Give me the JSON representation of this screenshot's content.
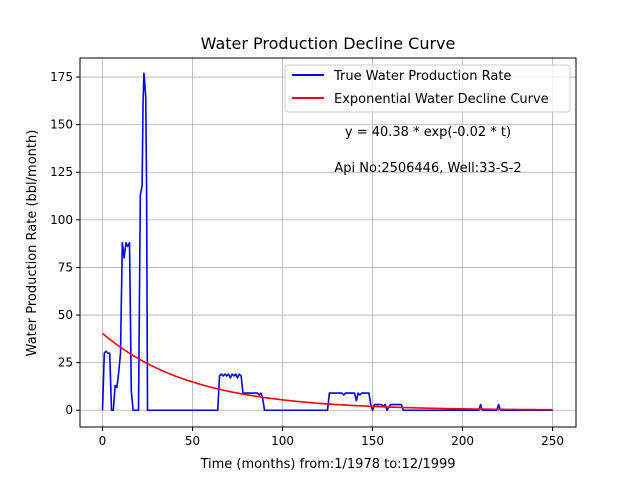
{
  "chart_data": {
    "type": "line",
    "title": "Water Production Decline Curve",
    "xlabel": "Time (months) from:1/1978 to:12/1999",
    "ylabel": "Water Production Rate (bbl/month)",
    "xlim": [
      -12.5,
      263
    ],
    "ylim": [
      -8.8,
      185
    ],
    "xticks": [
      0,
      50,
      100,
      150,
      200,
      250
    ],
    "yticks": [
      0,
      25,
      50,
      75,
      100,
      125,
      150,
      175
    ],
    "grid": true,
    "legend_position": "top-right",
    "annotations": [
      "y = 40.38 * exp(-0.02 * t)",
      "Api No:2506446, Well:33-S-2"
    ],
    "series": [
      {
        "name": "True Water Production Rate",
        "color": "#0000ff",
        "kind": "polyline",
        "points": [
          [
            0,
            0
          ],
          [
            1,
            30
          ],
          [
            2,
            31
          ],
          [
            3,
            30
          ],
          [
            4,
            30
          ],
          [
            5,
            0
          ],
          [
            6,
            0
          ],
          [
            7,
            13
          ],
          [
            8,
            12
          ],
          [
            9,
            20
          ],
          [
            10,
            30
          ],
          [
            11,
            88
          ],
          [
            12,
            80
          ],
          [
            13,
            88
          ],
          [
            14,
            86
          ],
          [
            15,
            88
          ],
          [
            16,
            10
          ],
          [
            17,
            0
          ],
          [
            18,
            0
          ],
          [
            19,
            0
          ],
          [
            20,
            0
          ],
          [
            21,
            113
          ],
          [
            22,
            118
          ],
          [
            22.5,
            160
          ],
          [
            23,
            177
          ],
          [
            24,
            165
          ],
          [
            24.5,
            115
          ],
          [
            25,
            0
          ],
          [
            26,
            0
          ],
          [
            64,
            0
          ],
          [
            65,
            18
          ],
          [
            66,
            19
          ],
          [
            67,
            18
          ],
          [
            68,
            19
          ],
          [
            69,
            18
          ],
          [
            70,
            19
          ],
          [
            71,
            17
          ],
          [
            72,
            19
          ],
          [
            73,
            18
          ],
          [
            74,
            19
          ],
          [
            75,
            17
          ],
          [
            76,
            19
          ],
          [
            77,
            18
          ],
          [
            78,
            9
          ],
          [
            86,
            9
          ],
          [
            87,
            8
          ],
          [
            88,
            9
          ],
          [
            89,
            6
          ],
          [
            90,
            0
          ],
          [
            125,
            0
          ],
          [
            126,
            9
          ],
          [
            133,
            9
          ],
          [
            134,
            8
          ],
          [
            135,
            9
          ],
          [
            140,
            9
          ],
          [
            141,
            5
          ],
          [
            142,
            9
          ],
          [
            143,
            8
          ],
          [
            144,
            9
          ],
          [
            148,
            9
          ],
          [
            149,
            3
          ],
          [
            150,
            0
          ],
          [
            151,
            3
          ],
          [
            155,
            3
          ],
          [
            156,
            2
          ],
          [
            157,
            3
          ],
          [
            158,
            0
          ],
          [
            160,
            3
          ],
          [
            166,
            3
          ],
          [
            167,
            0
          ],
          [
            209,
            0
          ],
          [
            210,
            3
          ],
          [
            211,
            0
          ],
          [
            219,
            0
          ],
          [
            220,
            3
          ],
          [
            221,
            0
          ],
          [
            250,
            0
          ]
        ]
      },
      {
        "name": "Exponential Water Decline Curve",
        "color": "#ff0000",
        "kind": "function",
        "a": 40.38,
        "b": 0.02,
        "x_range": [
          0,
          250
        ]
      }
    ]
  }
}
